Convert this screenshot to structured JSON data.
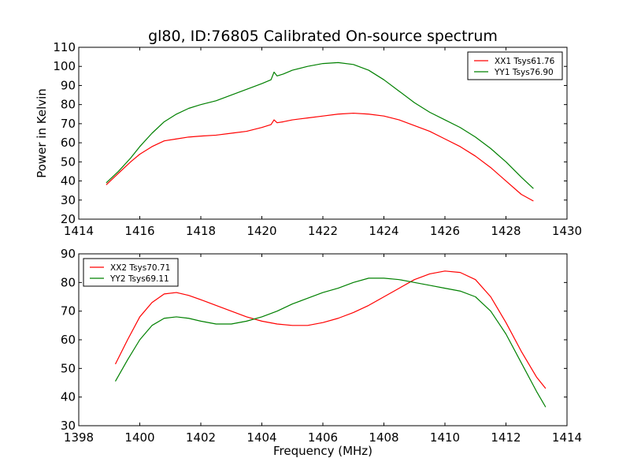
{
  "chart_data": [
    {
      "type": "line",
      "title": "gl80, ID:76805 Calibrated On-source spectrum",
      "xlabel": "",
      "ylabel": "Power in Kelvin",
      "xlim": [
        1414,
        1430
      ],
      "ylim": [
        20,
        110
      ],
      "xticks": [
        1414,
        1416,
        1418,
        1420,
        1422,
        1424,
        1426,
        1428,
        1430
      ],
      "yticks": [
        20,
        30,
        40,
        50,
        60,
        70,
        80,
        90,
        100,
        110
      ],
      "legend_position": "top-right",
      "grid": false,
      "series": [
        {
          "name": "XX1 Tsys61.76",
          "color": "#ff0000",
          "x": [
            1414.9,
            1415.3,
            1415.7,
            1416.0,
            1416.4,
            1416.8,
            1417.2,
            1417.6,
            1418.0,
            1418.5,
            1419.0,
            1419.5,
            1420.0,
            1420.3,
            1420.4,
            1420.5,
            1420.7,
            1421.0,
            1421.5,
            1422.0,
            1422.5,
            1423.0,
            1423.5,
            1424.0,
            1424.5,
            1425.0,
            1425.5,
            1426.0,
            1426.5,
            1427.0,
            1427.5,
            1428.0,
            1428.5,
            1428.9
          ],
          "y": [
            38,
            44,
            50,
            54,
            58,
            61,
            62,
            63,
            63.5,
            64,
            65,
            66,
            68,
            69.5,
            72,
            70.5,
            71,
            72,
            73,
            74,
            75,
            75.5,
            75,
            74,
            72,
            69,
            66,
            62,
            58,
            53,
            47,
            40,
            33,
            29.5
          ]
        },
        {
          "name": "YY1 Tsys76.90",
          "color": "#008000",
          "x": [
            1414.9,
            1415.3,
            1415.7,
            1416.0,
            1416.4,
            1416.8,
            1417.2,
            1417.6,
            1418.0,
            1418.5,
            1419.0,
            1419.5,
            1420.0,
            1420.3,
            1420.4,
            1420.5,
            1420.7,
            1421.0,
            1421.5,
            1422.0,
            1422.5,
            1423.0,
            1423.5,
            1424.0,
            1424.5,
            1425.0,
            1425.5,
            1426.0,
            1426.5,
            1427.0,
            1427.5,
            1428.0,
            1428.5,
            1428.9
          ],
          "y": [
            39,
            45,
            52,
            58,
            65,
            71,
            75,
            78,
            80,
            82,
            85,
            88,
            91,
            93,
            97,
            95,
            96,
            98,
            100,
            101.5,
            102,
            101,
            98,
            93,
            87,
            81,
            76,
            72,
            68,
            63,
            57,
            50,
            42,
            36
          ]
        }
      ]
    },
    {
      "type": "line",
      "title": "",
      "xlabel": "Frequency (MHz)",
      "ylabel": "",
      "xlim": [
        1398,
        1414
      ],
      "ylim": [
        30,
        90
      ],
      "xticks": [
        1398,
        1400,
        1402,
        1404,
        1406,
        1408,
        1410,
        1412,
        1414
      ],
      "yticks": [
        30,
        40,
        50,
        60,
        70,
        80,
        90
      ],
      "legend_position": "top-left",
      "grid": false,
      "series": [
        {
          "name": "XX2 Tsys70.71",
          "color": "#ff0000",
          "x": [
            1399.2,
            1399.6,
            1400.0,
            1400.4,
            1400.8,
            1401.2,
            1401.6,
            1402.0,
            1402.5,
            1403.0,
            1403.5,
            1404.0,
            1404.5,
            1405.0,
            1405.5,
            1406.0,
            1406.5,
            1407.0,
            1407.5,
            1408.0,
            1408.5,
            1409.0,
            1409.5,
            1410.0,
            1410.5,
            1411.0,
            1411.5,
            1412.0,
            1412.5,
            1413.0,
            1413.3
          ],
          "y": [
            51.5,
            60,
            68,
            73,
            76,
            76.5,
            75.5,
            74,
            72,
            70,
            68,
            66.5,
            65.5,
            65,
            65,
            66,
            67.5,
            69.5,
            72,
            75,
            78,
            81,
            83,
            84,
            83.5,
            81,
            75,
            66,
            56,
            47,
            43
          ]
        },
        {
          "name": "YY2 Tsys69.11",
          "color": "#008000",
          "x": [
            1399.2,
            1399.6,
            1400.0,
            1400.4,
            1400.8,
            1401.2,
            1401.6,
            1402.0,
            1402.5,
            1403.0,
            1403.5,
            1404.0,
            1404.5,
            1405.0,
            1405.5,
            1406.0,
            1406.5,
            1407.0,
            1407.5,
            1408.0,
            1408.5,
            1409.0,
            1409.5,
            1410.0,
            1410.5,
            1411.0,
            1411.5,
            1412.0,
            1412.5,
            1413.0,
            1413.3
          ],
          "y": [
            45.5,
            53,
            60,
            65,
            67.5,
            68,
            67.5,
            66.5,
            65.5,
            65.5,
            66.5,
            68,
            70,
            72.5,
            74.5,
            76.5,
            78,
            80,
            81.5,
            81.5,
            81,
            80,
            79,
            78,
            77,
            75,
            70,
            62,
            52,
            42,
            36.5
          ]
        }
      ]
    }
  ]
}
